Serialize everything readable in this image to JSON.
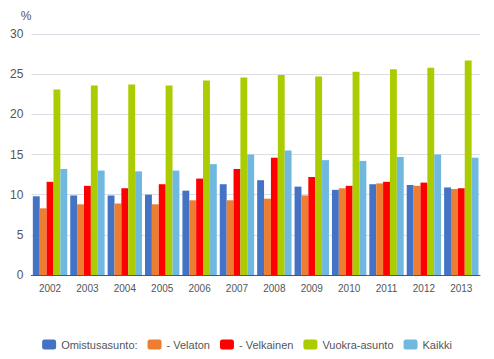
{
  "chart_data": {
    "type": "bar",
    "ylabel": "%",
    "categories": [
      "2002",
      "2003",
      "2004",
      "2005",
      "2006",
      "2007",
      "2008",
      "2009",
      "2010",
      "2011",
      "2012",
      "2013"
    ],
    "series": [
      {
        "name": "Omistusasunto:",
        "color": "#4472C4",
        "values": [
          9.8,
          9.9,
          9.9,
          10.0,
          10.5,
          11.3,
          11.8,
          11.0,
          10.6,
          11.3,
          11.2,
          10.9
        ]
      },
      {
        "name": "- Velaton",
        "color": "#ED7D31",
        "values": [
          8.3,
          8.8,
          8.9,
          8.8,
          9.3,
          9.3,
          9.5,
          9.9,
          10.8,
          11.4,
          11.1,
          10.7
        ]
      },
      {
        "name": "- Velkainen",
        "color": "#FF0000",
        "values": [
          11.6,
          11.1,
          10.8,
          11.3,
          12.0,
          13.2,
          14.6,
          12.2,
          11.1,
          11.6,
          11.5,
          10.8
        ]
      },
      {
        "name": "Vuokra-asunto",
        "color": "#AACC00",
        "values": [
          23.1,
          23.6,
          23.7,
          23.6,
          24.2,
          24.6,
          24.9,
          24.7,
          25.3,
          25.6,
          25.8,
          26.7
        ]
      },
      {
        "name": "Kaikki",
        "color": "#70B8E0",
        "values": [
          13.2,
          13.0,
          12.9,
          13.0,
          13.8,
          15.0,
          15.5,
          14.3,
          14.2,
          14.7,
          15.0,
          14.6
        ]
      }
    ],
    "ylim": [
      0,
      30
    ],
    "yticks": [
      0,
      5,
      10,
      15,
      20,
      25,
      30
    ],
    "grid": true,
    "legend": "bottom"
  }
}
